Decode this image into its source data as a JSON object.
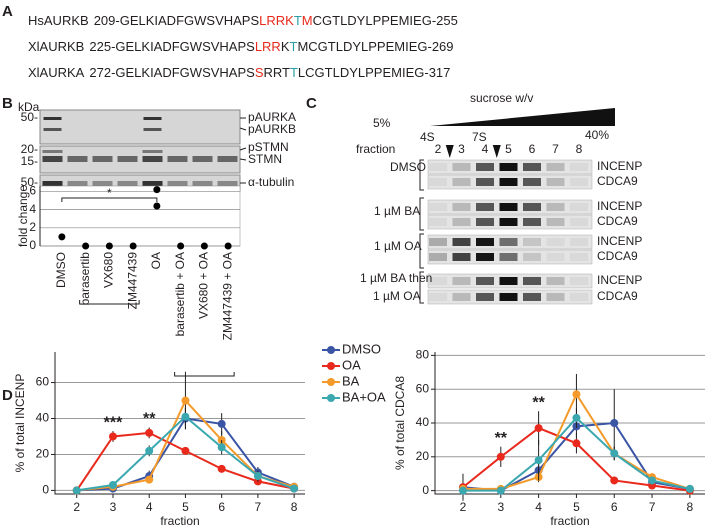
{
  "panel_a": {
    "label": "A",
    "sequences": [
      {
        "name": "HsAURKB",
        "start": "209",
        "end": "255",
        "segments": [
          {
            "text": "-GELKIADFGWSVHAPS",
            "color": "#231f20"
          },
          {
            "text": "LRRK",
            "color": "#e8291c"
          },
          {
            "text": "T",
            "color": "#2aa0a8"
          },
          {
            "text": "M",
            "color": "#e8291c"
          },
          {
            "text": "CGTLDYLPPEMIEG-",
            "color": "#231f20"
          }
        ]
      },
      {
        "name": "XlAURKB",
        "start": "225",
        "end": "269",
        "segments": [
          {
            "text": "-GELKIADFGWSVHAPS",
            "color": "#231f20"
          },
          {
            "text": "LRR",
            "color": "#e8291c"
          },
          {
            "text": "K",
            "color": "#231f20"
          },
          {
            "text": "T",
            "color": "#2aa0a8"
          },
          {
            "text": "M",
            "color": "#231f20"
          },
          {
            "text": "CGTLDYLPPEMIEG-",
            "color": "#231f20"
          }
        ]
      },
      {
        "name": "XlAURKA",
        "start": "272",
        "end": "317",
        "segments": [
          {
            "text": "-GELKIADFGWSVHAPS",
            "color": "#231f20"
          },
          {
            "text": "S",
            "color": "#e8291c"
          },
          {
            "text": "RRT",
            "color": "#231f20"
          },
          {
            "text": "T",
            "color": "#2aa0a8"
          },
          {
            "text": "L",
            "color": "#231f20"
          },
          {
            "text": "CGTLDYLPPEMIEG-",
            "color": "#231f20"
          }
        ]
      }
    ]
  },
  "panel_b": {
    "label": "B",
    "kda_label": "kDa",
    "markers": [
      "50-",
      "20-",
      "15-",
      "50-"
    ],
    "band_labels": [
      "pAURKA",
      "pAURKB",
      "pSTMN",
      "STMN",
      "α-tubulin"
    ]
  },
  "panel_c": {
    "label": "C",
    "gradient_label": "sucrose w/v",
    "gradient_low": "5%",
    "gradient_high": "40%",
    "size_markers": [
      "4S",
      "7S"
    ],
    "fraction_label": "fraction",
    "fractions": [
      "2",
      "3",
      "4",
      "5",
      "6",
      "7",
      "8"
    ],
    "conditions": [
      "DMSO",
      "1 µM BA",
      "1 µM OA",
      "1 µM BA then",
      "1 µM OA"
    ],
    "rows": [
      "INCENP",
      "CDCA9",
      "INCENP",
      "CDCA9",
      "INCENP",
      "CDCA9",
      "INCENP",
      "CDCA9"
    ]
  },
  "panel_d": {
    "label": "D"
  },
  "chart_data": [
    {
      "type": "line",
      "xlabel": "fraction",
      "ylabel": "% of total INCENP",
      "x": [
        2,
        3,
        4,
        5,
        6,
        7,
        8
      ],
      "xlim": [
        1.4,
        8.3
      ],
      "xticks": [
        2,
        3,
        4,
        5,
        6,
        7,
        8
      ],
      "ylim": [
        -2,
        77
      ],
      "yticks": [
        0,
        20,
        40,
        60
      ],
      "grid": true,
      "series": [
        {
          "name": "DMSO",
          "color": "#3b55a5",
          "values": [
            0,
            1,
            8,
            40,
            37,
            10,
            2
          ],
          "errors": [
            1,
            1,
            3,
            6,
            6,
            3,
            1
          ]
        },
        {
          "name": "OA",
          "color": "#e8291c",
          "values": [
            0,
            30,
            32,
            22,
            12,
            5,
            1
          ],
          "errors": [
            1,
            3,
            3,
            2,
            2,
            2,
            1
          ]
        },
        {
          "name": "BA",
          "color": "#f39a2a",
          "values": [
            0,
            2,
            6,
            50,
            28,
            8,
            2
          ],
          "errors": [
            1,
            1,
            2,
            16,
            5,
            3,
            1
          ]
        },
        {
          "name": "BA+OA",
          "color": "#3ba8b0",
          "values": [
            0,
            3,
            22,
            41,
            24,
            8,
            1
          ],
          "errors": [
            1,
            2,
            3,
            5,
            4,
            3,
            1
          ]
        }
      ],
      "annotations": [
        {
          "text": "***",
          "x": 3
        },
        {
          "text": "**",
          "x": 4
        }
      ]
    },
    {
      "type": "line",
      "xlabel": "fraction",
      "ylabel": "% of total CDCA8",
      "x": [
        2,
        3,
        4,
        5,
        6,
        7,
        8
      ],
      "xlim": [
        1.26,
        8.4
      ],
      "xticks": [
        2,
        3,
        4,
        5,
        6,
        7,
        8
      ],
      "ylim": [
        -2,
        82
      ],
      "yticks": [
        0,
        20,
        40,
        60,
        80
      ],
      "grid": true,
      "series": [
        {
          "name": "DMSO",
          "color": "#3b55a5",
          "values": [
            2,
            0,
            12,
            38,
            40,
            5,
            1
          ],
          "errors": [
            8,
            1,
            4,
            6,
            20,
            2,
            1
          ]
        },
        {
          "name": "OA",
          "color": "#e8291c",
          "values": [
            2,
            20,
            37,
            28,
            6,
            3,
            0
          ],
          "errors": [
            2,
            6,
            10,
            6,
            2,
            2,
            1
          ]
        },
        {
          "name": "BA",
          "color": "#f39a2a",
          "values": [
            1,
            1,
            8,
            57,
            22,
            8,
            1
          ],
          "errors": [
            1,
            1,
            3,
            12,
            4,
            2,
            1
          ]
        },
        {
          "name": "BA+OA",
          "color": "#3ba8b0",
          "values": [
            0,
            0,
            18,
            43,
            22,
            6,
            1
          ],
          "errors": [
            1,
            1,
            12,
            6,
            4,
            2,
            1
          ]
        }
      ],
      "annotations": [
        {
          "text": "**",
          "x": 3
        },
        {
          "text": "**",
          "x": 4
        }
      ]
    },
    {
      "type": "strip",
      "ylabel": "fold change",
      "categories": [
        "DMSO",
        "barasertib",
        "VX680",
        "ZM447439",
        "OA",
        "barasertib + OA",
        "VX680 + OA",
        "ZM447439 + OA"
      ],
      "values": [
        [
          1
        ],
        [
          0
        ],
        [
          0
        ],
        [
          0
        ],
        [
          6.2,
          4.4
        ],
        [
          0
        ],
        [
          0
        ],
        [
          0
        ]
      ],
      "ylim": [
        0,
        6.6
      ],
      "yticks": [
        0,
        2,
        4,
        6
      ],
      "grid": true,
      "color": "#000000",
      "annotation": "*"
    }
  ]
}
